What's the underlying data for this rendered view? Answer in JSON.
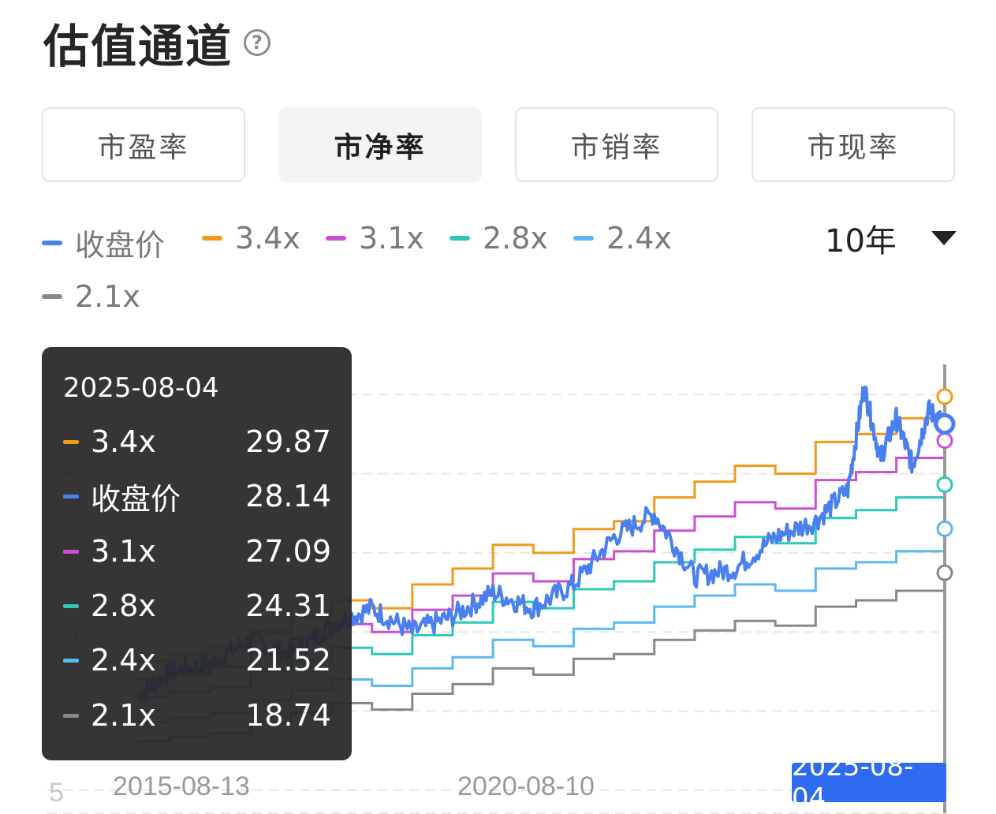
{
  "header": {
    "title": "估值通道",
    "help_icon": "question-circle-icon"
  },
  "tabs": [
    {
      "label": "市盈率",
      "active": false
    },
    {
      "label": "市净率",
      "active": true
    },
    {
      "label": "市销率",
      "active": false
    },
    {
      "label": "市现率",
      "active": false
    }
  ],
  "legend": [
    {
      "label": "收盘价",
      "color": "#4a7ff0"
    },
    {
      "label": "3.4x",
      "color": "#f29a1a"
    },
    {
      "label": "3.1x",
      "color": "#cc4fd4"
    },
    {
      "label": "2.8x",
      "color": "#2cc9b8"
    },
    {
      "label": "2.4x",
      "color": "#5ab8f2"
    },
    {
      "label": "2.1x",
      "color": "#888888"
    }
  ],
  "period": {
    "selected": "10年",
    "icon": "caret-down-icon"
  },
  "tooltip": {
    "date": "2025-08-04",
    "rows": [
      {
        "name": "3.4x",
        "value": "29.87",
        "color": "#f29a1a"
      },
      {
        "name": "收盘价",
        "value": "28.14",
        "color": "#4a7ff0"
      },
      {
        "name": "3.1x",
        "value": "27.09",
        "color": "#cc4fd4"
      },
      {
        "name": "2.8x",
        "value": "24.31",
        "color": "#2cc9b8"
      },
      {
        "name": "2.4x",
        "value": "21.52",
        "color": "#5ab8f2"
      },
      {
        "name": "2.1x",
        "value": "18.74",
        "color": "#888888"
      }
    ]
  },
  "selected_date": "2025-08-04",
  "chart_data": {
    "type": "line",
    "x_ticks": [
      "2015-08-13",
      "2020-08-10",
      "2025-08-04"
    ],
    "y_ticks": [
      5,
      10,
      15,
      20,
      25,
      30
    ],
    "ylim": [
      3.5,
      33
    ],
    "grid": true,
    "legend_position": "top",
    "price_years": [
      2015.6,
      2016.0,
      2016.5,
      2017.0,
      2017.5,
      2018.0,
      2018.5,
      2019.0,
      2019.5,
      2020.0,
      2020.5,
      2021.0,
      2021.5,
      2022.0,
      2022.5,
      2023.0,
      2023.5,
      2024.0,
      2024.4,
      2024.6,
      2024.8,
      2025.0,
      2025.2,
      2025.4,
      2025.6
    ],
    "multiplier_years": [
      2015.6,
      2016.0,
      2016.5,
      2017.0,
      2017.5,
      2018.0,
      2018.5,
      2019.0,
      2019.5,
      2020.0,
      2020.5,
      2021.0,
      2021.5,
      2022.0,
      2022.5,
      2023.0,
      2023.5,
      2024.0,
      2024.5,
      2025.0,
      2025.6
    ],
    "series": [
      {
        "name": "收盘价",
        "color": "#4a7ff0",
        "values": [
          11.0,
          12.5,
          13.0,
          14.5,
          13.5,
          15.5,
          16.5,
          15.0,
          16.0,
          17.5,
          16.5,
          18.0,
          21.0,
          22.5,
          18.5,
          19.0,
          21.0,
          22.0,
          24.0,
          30.5,
          26.0,
          28.5,
          25.5,
          29.0,
          28.14
        ]
      },
      {
        "name": "3.4x",
        "color": "#f29a1a",
        "values": [
          13.2,
          13.6,
          14.0,
          15.0,
          16.0,
          17.0,
          16.5,
          18.0,
          19.0,
          20.5,
          20.0,
          21.5,
          22.0,
          23.5,
          24.5,
          25.5,
          25.0,
          27.0,
          27.5,
          28.5,
          29.87
        ]
      },
      {
        "name": "3.1x",
        "color": "#cc4fd4",
        "values": [
          12.0,
          12.4,
          12.8,
          13.8,
          14.6,
          15.5,
          15.0,
          16.4,
          17.3,
          18.7,
          18.2,
          19.6,
          20.1,
          21.4,
          22.3,
          23.2,
          22.8,
          24.6,
          25.1,
          26.0,
          27.09
        ]
      },
      {
        "name": "2.8x",
        "color": "#2cc9b8",
        "values": [
          10.9,
          11.2,
          11.5,
          12.5,
          13.2,
          14.0,
          13.6,
          14.8,
          15.6,
          16.9,
          16.5,
          17.7,
          18.2,
          19.4,
          20.2,
          21.0,
          20.6,
          22.2,
          22.7,
          23.5,
          24.31
        ]
      },
      {
        "name": "2.4x",
        "color": "#5ab8f2",
        "values": [
          9.3,
          9.6,
          9.9,
          10.7,
          11.3,
          12.0,
          11.6,
          12.7,
          13.4,
          14.5,
          14.1,
          15.2,
          15.6,
          16.6,
          17.3,
          18.0,
          17.6,
          19.0,
          19.4,
          20.1,
          21.52
        ]
      },
      {
        "name": "2.1x",
        "color": "#888888",
        "values": [
          8.1,
          8.4,
          8.6,
          9.3,
          9.9,
          10.5,
          10.1,
          11.1,
          11.7,
          12.7,
          12.3,
          13.3,
          13.6,
          14.5,
          15.1,
          15.7,
          15.4,
          16.6,
          17.0,
          17.6,
          18.74
        ]
      }
    ]
  }
}
